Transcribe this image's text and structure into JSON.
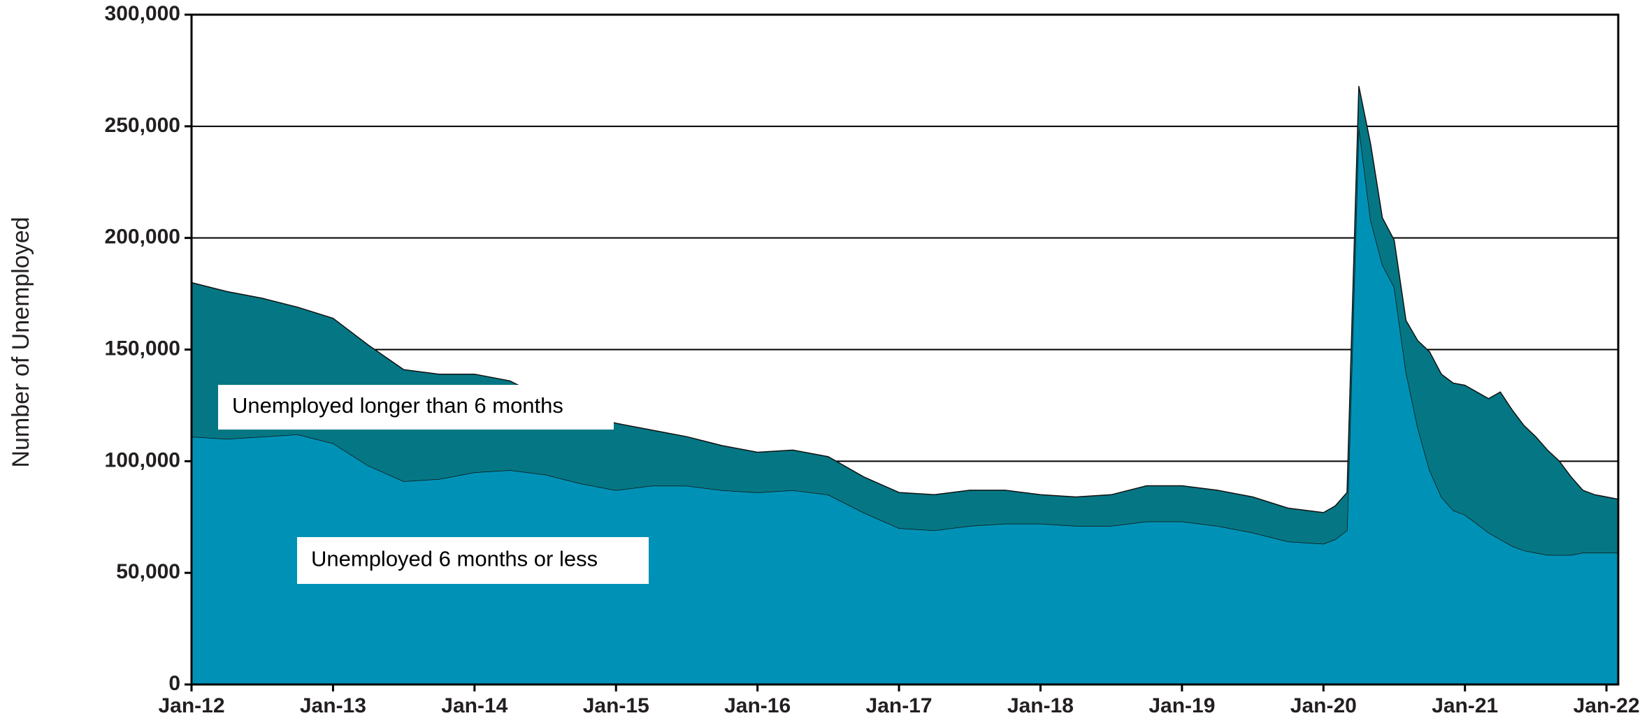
{
  "chart_data": {
    "type": "stacked-area",
    "y_axis_label": "Number of Unemployed",
    "x": [
      "Jan-12",
      "Apr-12",
      "Jul-12",
      "Oct-12",
      "Jan-13",
      "Apr-13",
      "Jul-13",
      "Oct-13",
      "Jan-14",
      "Apr-14",
      "Jul-14",
      "Oct-14",
      "Jan-15",
      "Apr-15",
      "Jul-15",
      "Oct-15",
      "Jan-16",
      "Apr-16",
      "Jul-16",
      "Oct-16",
      "Jan-17",
      "Apr-17",
      "Jul-17",
      "Oct-17",
      "Jan-18",
      "Apr-18",
      "Jul-18",
      "Oct-18",
      "Jan-19",
      "Apr-19",
      "Jul-19",
      "Oct-19",
      "Jan-20",
      "Feb-20",
      "Mar-20",
      "Apr-20",
      "May-20",
      "Jun-20",
      "Jul-20",
      "Aug-20",
      "Sep-20",
      "Oct-20",
      "Nov-20",
      "Dec-20",
      "Jan-21",
      "Feb-21",
      "Mar-21",
      "Apr-21",
      "May-21",
      "Jun-21",
      "Jul-21",
      "Aug-21",
      "Sep-21",
      "Oct-21",
      "Nov-21",
      "Dec-21",
      "Jan-22",
      "Feb-22"
    ],
    "series": [
      {
        "name": "Unemployed 6 months or less",
        "color": "#0092b6",
        "values": [
          111000,
          110000,
          111000,
          112000,
          108000,
          98000,
          91000,
          92000,
          95000,
          96000,
          94000,
          90000,
          87000,
          89000,
          89000,
          87000,
          86000,
          87000,
          85000,
          77000,
          70000,
          69000,
          71000,
          72000,
          72000,
          71000,
          71000,
          73000,
          73000,
          71000,
          68000,
          64000,
          63000,
          65000,
          69000,
          250000,
          208000,
          188000,
          178000,
          140000,
          115000,
          96000,
          84000,
          78000,
          76000,
          72000,
          68000,
          65000,
          62000,
          60000,
          59000,
          58000,
          58000,
          58000,
          59000,
          59000,
          59000,
          59000
        ]
      },
      {
        "name": "Unemployed longer than 6 months",
        "color": "#057784",
        "values": [
          69000,
          66000,
          62000,
          57000,
          56000,
          54000,
          50000,
          47000,
          44000,
          40000,
          34000,
          31000,
          30000,
          25000,
          22000,
          20000,
          18000,
          18000,
          17000,
          16000,
          16000,
          16000,
          16000,
          15000,
          13000,
          13000,
          14000,
          16000,
          16000,
          16000,
          16000,
          15000,
          14000,
          15000,
          17000,
          18000,
          34000,
          21000,
          21000,
          23000,
          39000,
          53000,
          55000,
          57000,
          58000,
          59000,
          60000,
          66000,
          61000,
          56000,
          52000,
          47000,
          42000,
          35000,
          28000,
          26000,
          25000,
          24000
        ]
      }
    ],
    "xlim": [
      "Jan-12",
      "Feb-22"
    ],
    "xticks": [
      "Jan-12",
      "Jan-13",
      "Jan-14",
      "Jan-15",
      "Jan-16",
      "Jan-17",
      "Jan-18",
      "Jan-19",
      "Jan-20",
      "Jan-21",
      "Jan-22"
    ],
    "ylim": [
      0,
      300000
    ],
    "yticks": [
      0,
      {
        "value": 50000,
        "label": "50,000"
      },
      {
        "value": 100000,
        "label": "100,000"
      },
      {
        "value": 150000,
        "label": "150,000"
      },
      {
        "value": 200000,
        "label": "200,000"
      },
      {
        "value": 250000,
        "label": "250,000"
      },
      {
        "value": 300000,
        "label": "300,000"
      }
    ],
    "grid": true
  }
}
